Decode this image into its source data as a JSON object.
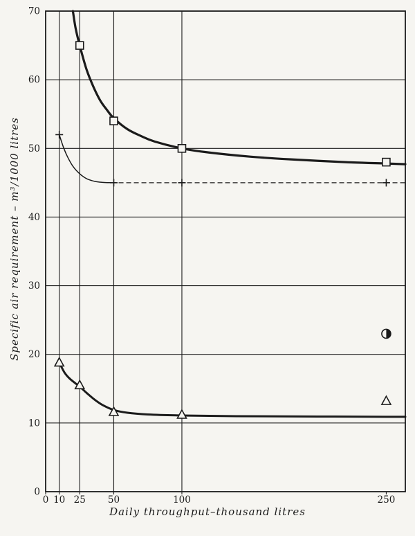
{
  "figure": {
    "paper_color": "#f6f5f1",
    "ink_color": "#1b1b1b"
  },
  "chart_data": {
    "type": "line",
    "title": "",
    "xlabel": "Daily throughput–thousand litres",
    "ylabel": "Specific air requirement – m³/1000 litres",
    "xlim": [
      0,
      264
    ],
    "ylim": [
      0,
      70
    ],
    "x_ticks": [
      0,
      10,
      25,
      50,
      100,
      250
    ],
    "y_ticks": [
      0,
      10,
      20,
      30,
      40,
      50,
      60,
      70
    ],
    "x_gridlines": [
      10,
      25,
      50,
      100
    ],
    "y_gridlines": [
      10,
      20,
      30,
      40,
      50,
      60
    ],
    "grid": true,
    "legend": "none",
    "series": [
      {
        "name": "square-curve",
        "marker": "square",
        "line_width": 3.2,
        "style": "solid",
        "points": [
          [
            25,
            65
          ],
          [
            50,
            54
          ],
          [
            100,
            50
          ],
          [
            250,
            48
          ]
        ],
        "curve": [
          [
            20,
            70
          ],
          [
            22,
            67.5
          ],
          [
            25,
            65
          ],
          [
            30,
            61.5
          ],
          [
            35,
            59
          ],
          [
            40,
            57
          ],
          [
            45,
            55.6
          ],
          [
            50,
            54.4
          ],
          [
            60,
            52.8
          ],
          [
            70,
            51.8
          ],
          [
            80,
            51
          ],
          [
            100,
            50
          ],
          [
            120,
            49.4
          ],
          [
            150,
            48.8
          ],
          [
            180,
            48.4
          ],
          [
            220,
            48
          ],
          [
            250,
            47.8
          ],
          [
            264,
            47.7
          ]
        ]
      },
      {
        "name": "plus-curve",
        "marker": "plus",
        "line_width": 1.5,
        "style": "solid-then-dashed",
        "points": [
          [
            10,
            52
          ],
          [
            50,
            45
          ],
          [
            100,
            45
          ],
          [
            250,
            45
          ]
        ],
        "curve": [
          [
            10,
            52
          ],
          [
            13,
            50.2
          ],
          [
            16,
            48.8
          ],
          [
            20,
            47.4
          ],
          [
            25,
            46.3
          ],
          [
            30,
            45.6
          ],
          [
            36,
            45.2
          ],
          [
            42,
            45.05
          ],
          [
            48,
            45
          ]
        ],
        "dashed_from": [
          48,
          45
        ],
        "dashed_to": [
          264,
          45
        ]
      },
      {
        "name": "triangle-curve",
        "marker": "triangle",
        "line_width": 3,
        "style": "solid",
        "points": [
          [
            10,
            18.8
          ],
          [
            25,
            15.5
          ],
          [
            50,
            11.6
          ],
          [
            100,
            11.2
          ],
          [
            250,
            13.2
          ]
        ],
        "curve": [
          [
            10,
            18.8
          ],
          [
            14,
            17.3
          ],
          [
            18,
            16.4
          ],
          [
            25,
            15.3
          ],
          [
            30,
            14.4
          ],
          [
            36,
            13.4
          ],
          [
            42,
            12.6
          ],
          [
            50,
            11.9
          ],
          [
            60,
            11.5
          ],
          [
            75,
            11.25
          ],
          [
            100,
            11.1
          ],
          [
            140,
            11
          ],
          [
            200,
            10.95
          ],
          [
            250,
            10.9
          ],
          [
            264,
            10.9
          ]
        ]
      },
      {
        "name": "single-point",
        "marker": "half-filled-circle",
        "line_width": 0,
        "style": "none",
        "points": [
          [
            250,
            23
          ]
        ]
      }
    ]
  }
}
